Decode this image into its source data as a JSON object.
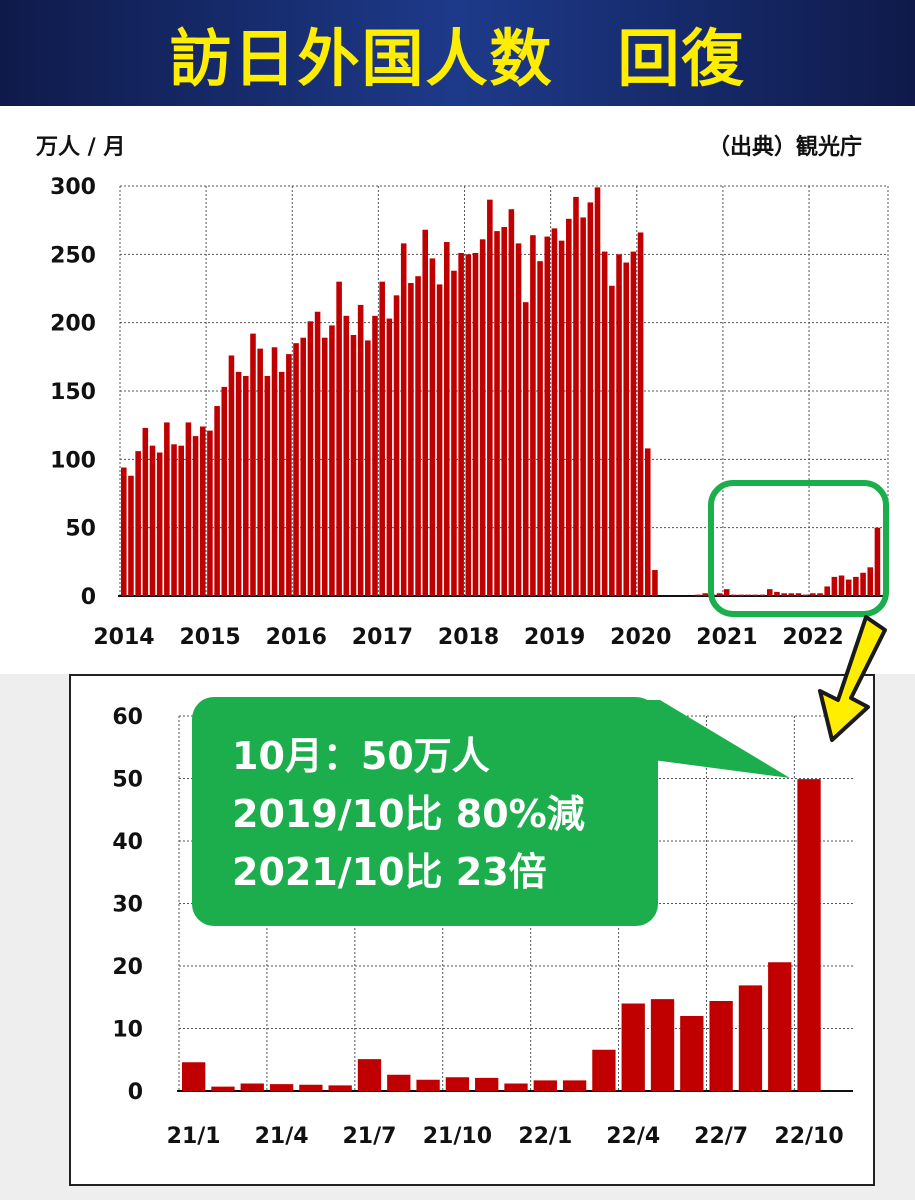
{
  "title": "訪日外国人数　回復",
  "unit_label": "万人 / 月",
  "source_label": "（出典）観光庁",
  "callout": {
    "line1": "10月：50万人",
    "line2": "2019/10比 80%減",
    "line3": "2021/10比 23倍"
  },
  "colors": {
    "bar": "#c00000",
    "highlight": "#1cae4c",
    "arrow": "#ffee00",
    "title_text": "#ffee00",
    "title_bg": "#1d3a8a"
  },
  "chart_data": [
    {
      "type": "bar",
      "ylim": [
        0,
        300
      ],
      "yticks": [
        0,
        50,
        100,
        150,
        200,
        250,
        300
      ],
      "year_labels": [
        "2014",
        "2015",
        "2016",
        "2017",
        "2018",
        "2019",
        "2020",
        "2021",
        "2022"
      ],
      "start": "2014/1",
      "end": "2022/10",
      "grid": true,
      "values": [
        94,
        88,
        106,
        123,
        110,
        105,
        127,
        111,
        110,
        127,
        117,
        124,
        121,
        139,
        153,
        176,
        164,
        161,
        192,
        181,
        161,
        182,
        164,
        177,
        185,
        189,
        201,
        208,
        189,
        198,
        230,
        205,
        191,
        213,
        187,
        205,
        230,
        203,
        220,
        258,
        229,
        234,
        268,
        247,
        228,
        259,
        238,
        251,
        250,
        251,
        261,
        290,
        267,
        270,
        283,
        258,
        215,
        264,
        245,
        263,
        269,
        260,
        276,
        292,
        277,
        288,
        299,
        252,
        227,
        250,
        244,
        252,
        266,
        108,
        19,
        0,
        0,
        0,
        0,
        0,
        1,
        2,
        1,
        2,
        5,
        1,
        1,
        1,
        1,
        1,
        5,
        3,
        2,
        2,
        2,
        1,
        2,
        2,
        7,
        14,
        15,
        12,
        14,
        17,
        21,
        50
      ]
    },
    {
      "type": "bar",
      "ylim": [
        0,
        60
      ],
      "yticks": [
        0,
        10,
        20,
        30,
        40,
        50,
        60
      ],
      "categories": [
        "21/1",
        "21/2",
        "21/3",
        "21/4",
        "21/5",
        "21/6",
        "21/7",
        "21/8",
        "21/9",
        "21/10",
        "21/11",
        "21/12",
        "22/1",
        "22/2",
        "22/3",
        "22/4",
        "22/5",
        "22/6",
        "22/7",
        "22/8",
        "22/9",
        "22/10"
      ],
      "tick_labels": [
        "21/1",
        "21/4",
        "21/7",
        "21/10",
        "22/1",
        "22/4",
        "22/7",
        "22/10"
      ],
      "grid": true,
      "values": [
        4.6,
        0.7,
        1.2,
        1.1,
        1.0,
        0.9,
        5.1,
        2.6,
        1.8,
        2.2,
        2.1,
        1.2,
        1.7,
        1.7,
        6.6,
        14.0,
        14.7,
        12.0,
        14.4,
        16.9,
        20.6,
        49.9
      ]
    }
  ]
}
